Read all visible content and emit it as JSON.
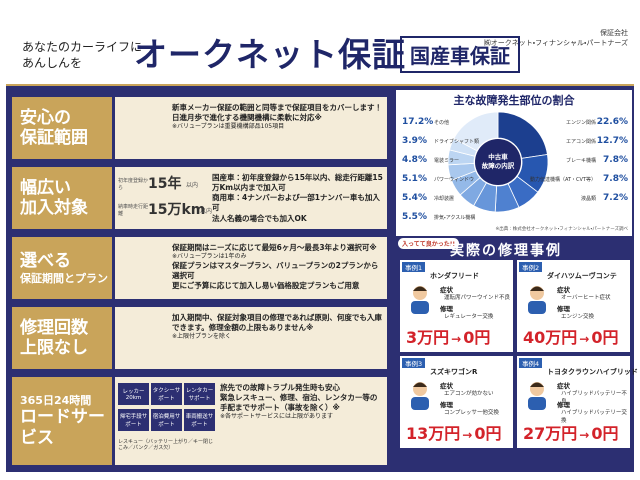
{
  "header": {
    "tagline": [
      "あなたのカーライフに",
      "あんしんを"
    ],
    "title": "オークネット保証",
    "badge": "国産車保証",
    "company_label": "保証会社",
    "company": "㈱オークネット・フィナンシャル・パートナーズ"
  },
  "features": [
    {
      "label": [
        "安心の",
        "保証範囲"
      ],
      "lines": [
        "新車メーカー保証の範囲と同等まで保証項目をカバーします！日進月歩で進化する機関機構に柔軟に対応※",
        "※バリュープランは重要機構部品105項目"
      ]
    },
    {
      "label": [
        "幅広い",
        "加入対象"
      ],
      "stats": [
        {
          "caption": "初年度登録から",
          "value": "15年",
          "suffix": "以内"
        },
        {
          "caption": "納車時走行距離",
          "value": "15万km",
          "suffix": "以内"
        }
      ],
      "lines": [
        "国産車：初年度登録から15年以内、総走行距離15万Km以内まで加入可",
        "商用車：4ナンバーおよび一部1ナンバー車も加入可",
        "法人名義の場合でも加入OK"
      ]
    },
    {
      "label": [
        "選べる",
        "保証期間とプラン"
      ],
      "lines": [
        "保証期間はニーズに応じて最短6ヶ月～最長3年より選択可※",
        "※バリュープランは1年のみ",
        "保証プランはマスタープラン、バリュープランの2プランから選択可",
        "更にご予算に応じて加入し易い価格設定プランもご用意"
      ]
    },
    {
      "label": [
        "修理回数",
        "上限なし"
      ],
      "lines": [
        "加入期間中、保証対象項目の修理であれば原則、何度でも入庫できます。修理金額の上限もありません※",
        "※上限付プランを除く"
      ]
    },
    {
      "label": [
        "365日24時間",
        "ロードサービス"
      ],
      "services": [
        "レッカー20km",
        "タクシーサポート",
        "レンタカーサポート",
        "帰宅手段サポート",
        "宿泊費用サポート",
        "車両搬送サポート"
      ],
      "services_note": "レスキュー（バッテリー上がり／キー閉じこみ／パンク／ガス欠）",
      "lines": [
        "旅先での故障トラブル発生時も安心",
        "緊急レスキュー、修理、宿泊、レンタカー等の手配までサポート（事故を除く）※",
        "※各サポートサービスには上限があります"
      ]
    }
  ],
  "breakdown": {
    "title": "主な故障発生部位の割合",
    "center": [
      "中古車",
      "故障の内訳"
    ],
    "segments": [
      {
        "name": "エンジン関係",
        "value": 22.6,
        "label": "22.6%",
        "color": "#1c3f8f"
      },
      {
        "name": "エアコン関係",
        "value": 12.7,
        "label": "12.7%",
        "color": "#2757b0"
      },
      {
        "name": "ブレーキ機構",
        "value": 7.8,
        "label": "7.8%",
        "color": "#3a6cc4"
      },
      {
        "name": "動力伝達機構（AT・CVT等）",
        "value": 7.8,
        "label": "7.8%",
        "color": "#4f81d0"
      },
      {
        "name": "液晶類",
        "value": 7.2,
        "label": "7.2%",
        "color": "#6796da"
      },
      {
        "name": "排気・アクスル機構",
        "value": 5.5,
        "label": "5.5%",
        "color": "#7fa9e2"
      },
      {
        "name": "冷却装置",
        "value": 5.4,
        "label": "5.4%",
        "color": "#94b9e8"
      },
      {
        "name": "パワーウィンドウ",
        "value": 5.1,
        "label": "5.1%",
        "color": "#a9c8ee"
      },
      {
        "name": "電装ミラー",
        "value": 4.8,
        "label": "4.8%",
        "color": "#bcd5f2"
      },
      {
        "name": "ドライブシャフト類",
        "value": 3.9,
        "label": "3.9%",
        "color": "#cfe1f6"
      },
      {
        "name": "その他",
        "value": 17.2,
        "label": "17.2%",
        "color": "#e0ebf9"
      }
    ],
    "source": "※出典：株式会社オークネット・フィナンシャル・パートナーズ調べ"
  },
  "cases": {
    "bubble": "入ってて良かった!!",
    "title": "実際の修理事例",
    "items": [
      {
        "tag": "事例1",
        "car": "ホンダフリード",
        "symptom_label": "症状",
        "symptom": "運転席パワーウインド不良",
        "repair_label": "修理",
        "repair": "レギュレーター交換",
        "before": "3万円",
        "arrow": "→",
        "after": "0円"
      },
      {
        "tag": "事例2",
        "car": "ダイハツムーヴコンテ",
        "symptom_label": "症状",
        "symptom": "オーバーヒート症状",
        "repair_label": "修理",
        "repair": "エンジン交換",
        "before": "40万円",
        "arrow": "→",
        "after": "0円"
      },
      {
        "tag": "事例3",
        "car": "スズキワゴンR",
        "symptom_label": "症状",
        "symptom": "エアコンが効かない",
        "repair_label": "修理",
        "repair": "コンプレッサー他交換",
        "before": "13万円",
        "arrow": "→",
        "after": "0円"
      },
      {
        "tag": "事例4",
        "car": "トヨタクラウンハイブリッド",
        "symptom_label": "症状",
        "symptom": "ハイブリッドバッテリー不良",
        "repair_label": "修理",
        "repair": "ハイブリッドバッテリー交換",
        "before": "27万円",
        "arrow": "→",
        "after": "0円"
      }
    ]
  }
}
